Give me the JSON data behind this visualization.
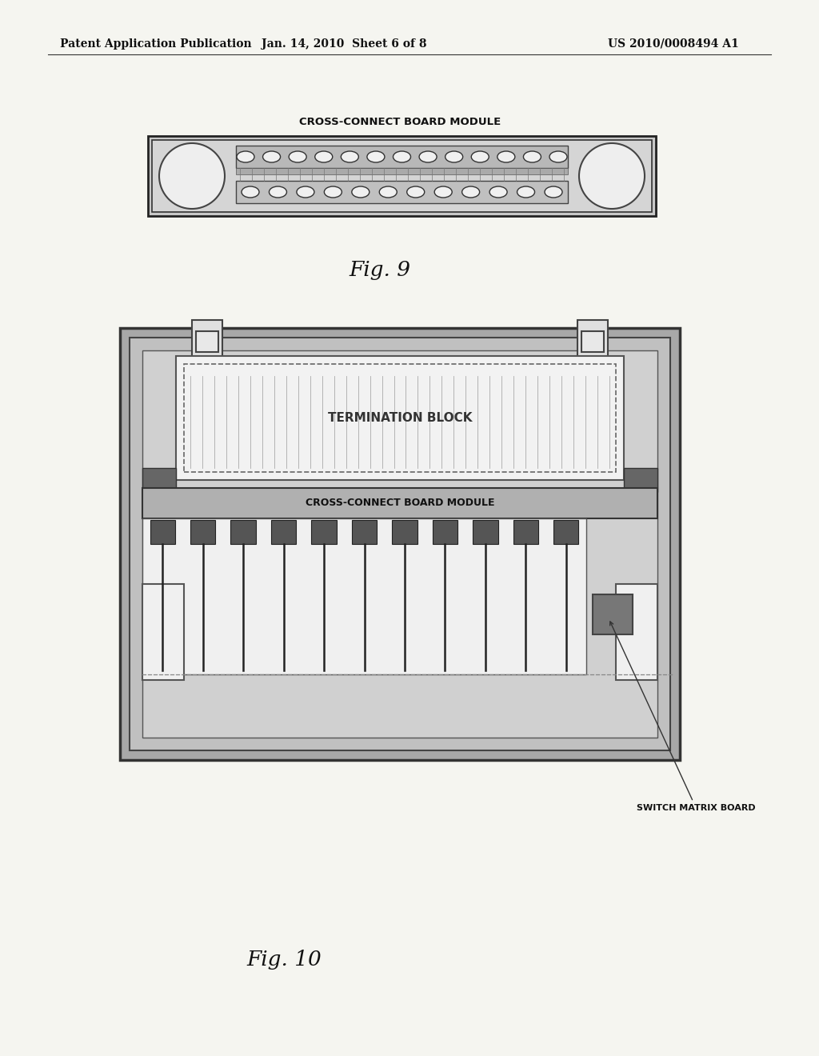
{
  "page_bg": "#f5f5f0",
  "header_left": "Patent Application Publication",
  "header_center": "Jan. 14, 2010  Sheet 6 of 8",
  "header_right": "US 2010/0008494 A1",
  "fig9_label_text": "CROSS-CONNECT BOARD MODULE",
  "fig9_caption": "Fig. 9",
  "fig10_termblock_label": "TERMINATION BLOCK",
  "fig10_ccbm_label": "CROSS-CONNECT BOARD MODULE",
  "fig10_smb_label": "SWITCH MATRIX BOARD",
  "fig10_caption": "Fig. 10",
  "colors": {
    "black": "#111111",
    "dark_gray": "#555555",
    "medium_gray": "#888888",
    "light_gray": "#bbbbbb",
    "very_light_gray": "#d8d8d8",
    "white": "#f8f8f8",
    "board_dark": "#555555",
    "outer_frame": "#a0a0a0",
    "mid_gray": "#909090"
  }
}
